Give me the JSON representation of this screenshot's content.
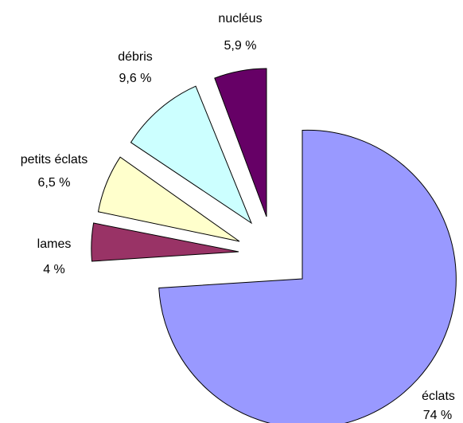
{
  "chart_data": {
    "type": "pie",
    "exploded": true,
    "slices": [
      {
        "name": "éclats",
        "value_label": "74 %",
        "value": 74,
        "color": "#9999ff"
      },
      {
        "name": "lames",
        "value_label": "4 %",
        "value": 4,
        "color": "#993366"
      },
      {
        "name": "petits éclats",
        "value_label": "6,5 %",
        "value": 6.5,
        "color": "#ffffcc"
      },
      {
        "name": "débris",
        "value_label": "9,6 %",
        "value": 9.6,
        "color": "#ccffff"
      },
      {
        "name": "nucléus",
        "value_label": "5,9 %",
        "value": 5.9,
        "color": "#660066"
      }
    ]
  }
}
